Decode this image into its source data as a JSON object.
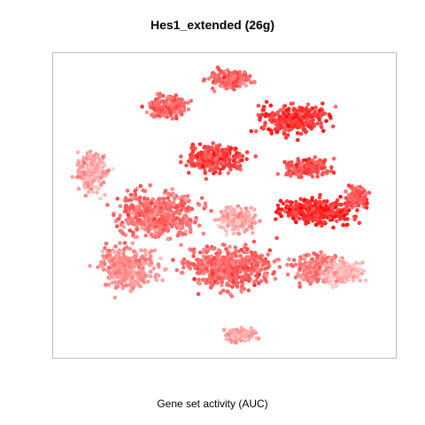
{
  "chart_data": {
    "type": "scatter",
    "title": "Hes1_extended (26g)",
    "xlabel": "Gene set activity (AUC)",
    "ylabel": "",
    "color_low": "#fde0e0",
    "color_high": "#ff0000",
    "point_style": "dense tSNE embedding of cells colored by AUC value; dark red = high, pale pink = low",
    "grid": false,
    "legend": "none"
  }
}
